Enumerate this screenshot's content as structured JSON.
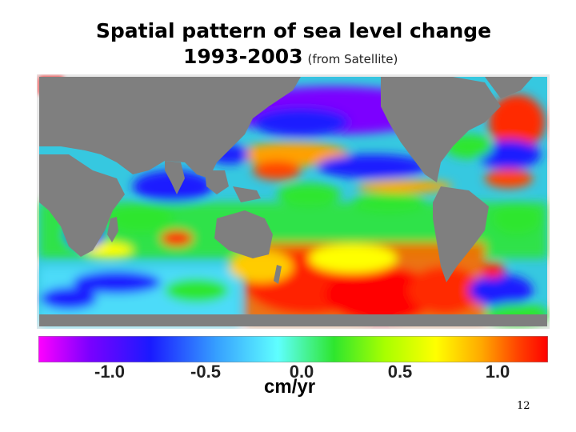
{
  "title": {
    "line1": "Spatial pattern of sea level change",
    "line2_main": "1993-2003",
    "line2_source": "(from Satellite)"
  },
  "colorbar": {
    "ticks": [
      "-1.0",
      "-0.5",
      "0.0",
      "0.5",
      "1.0"
    ],
    "unit": "cm/yr",
    "colors": [
      "#ff00ff",
      "#7b00ff",
      "#1a1aff",
      "#36a0ff",
      "#5fffff",
      "#2ee62e",
      "#a8ff00",
      "#ffff00",
      "#ffa800",
      "#ff4400",
      "#ff0000"
    ]
  },
  "map": {
    "land_color": "#7f7f7f",
    "frame_color": "#d0d0d0"
  },
  "page_number": "12"
}
